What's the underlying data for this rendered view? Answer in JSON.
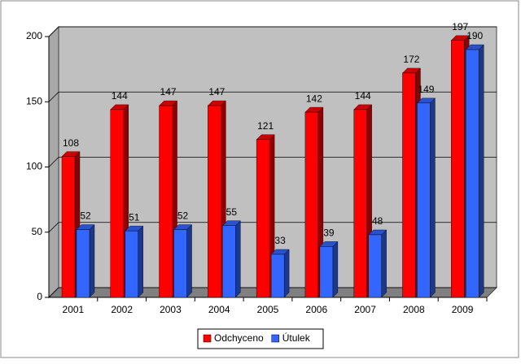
{
  "chart_data": {
    "type": "bar3d",
    "categories": [
      "2001",
      "2002",
      "2003",
      "2004",
      "2005",
      "2006",
      "2007",
      "2008",
      "2009"
    ],
    "series": [
      {
        "name": "Odchyceno",
        "color": "#ff0000",
        "values": [
          108,
          144,
          147,
          147,
          121,
          142,
          144,
          172,
          197
        ]
      },
      {
        "name": "Útulek",
        "color": "#3366ff",
        "values": [
          52,
          51,
          52,
          55,
          33,
          39,
          48,
          149,
          190
        ]
      }
    ],
    "ylim": [
      0,
      200
    ],
    "yticks": [
      0,
      50,
      100,
      150,
      200
    ],
    "grid": true,
    "legend": "bottom"
  }
}
